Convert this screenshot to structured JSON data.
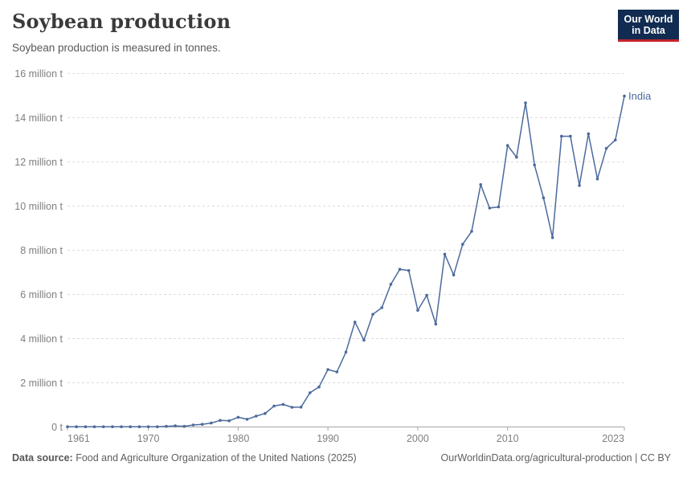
{
  "header": {
    "title": "Soybean production",
    "subtitle": "Soybean production is measured in tonnes.",
    "logo": {
      "line1": "Our World",
      "line2": "in Data"
    }
  },
  "footer": {
    "source_label": "Data source:",
    "source_text": " Food and Agriculture Organization of the United Nations (2025)",
    "license_text": "OurWorldinData.org/agricultural-production | CC BY"
  },
  "colors": {
    "line": "#4c6a9c",
    "series_label": "#4c6a9c",
    "grid": "#dcdcdc",
    "axis": "#a5a5a5",
    "tick_label": "#7f7f7f",
    "logo_bg": "#112b51",
    "logo_stripe": "#c5232b"
  },
  "chart_data": {
    "type": "line",
    "title": "Soybean production",
    "subtitle": "Soybean production is measured in tonnes.",
    "unit": "million tonnes",
    "xlim": [
      1961,
      2023
    ],
    "ylim": [
      0,
      16
    ],
    "grid": "horizontal-dashed",
    "legend_position": "end-of-line-label",
    "x_ticks": [
      {
        "value": 1961,
        "label": "1961"
      },
      {
        "value": 1970,
        "label": "1970"
      },
      {
        "value": 1980,
        "label": "1980"
      },
      {
        "value": 1990,
        "label": "1990"
      },
      {
        "value": 2000,
        "label": "2000"
      },
      {
        "value": 2010,
        "label": "2010"
      },
      {
        "value": 2023,
        "label": "2023"
      }
    ],
    "y_ticks": [
      {
        "value": 0,
        "label": "0 t"
      },
      {
        "value": 2,
        "label": "2 million t"
      },
      {
        "value": 4,
        "label": "4 million t"
      },
      {
        "value": 6,
        "label": "6 million t"
      },
      {
        "value": 8,
        "label": "8 million t"
      },
      {
        "value": 10,
        "label": "10 million t"
      },
      {
        "value": 12,
        "label": "12 million t"
      },
      {
        "value": 14,
        "label": "14 million t"
      },
      {
        "value": 16,
        "label": "16 million t"
      }
    ],
    "series": [
      {
        "name": "India",
        "x": [
          1961,
          1962,
          1963,
          1964,
          1965,
          1966,
          1967,
          1968,
          1969,
          1970,
          1971,
          1972,
          1973,
          1974,
          1975,
          1976,
          1977,
          1978,
          1979,
          1980,
          1981,
          1982,
          1983,
          1984,
          1985,
          1986,
          1987,
          1988,
          1989,
          1990,
          1991,
          1992,
          1993,
          1994,
          1995,
          1996,
          1997,
          1998,
          1999,
          2000,
          2001,
          2002,
          2003,
          2004,
          2005,
          2006,
          2007,
          2008,
          2009,
          2010,
          2011,
          2012,
          2013,
          2014,
          2015,
          2016,
          2017,
          2018,
          2019,
          2020,
          2021,
          2022,
          2023
        ],
        "y": [
          0.01,
          0.01,
          0.01,
          0.01,
          0.01,
          0.01,
          0.01,
          0.01,
          0.01,
          0.01,
          0.01,
          0.03,
          0.05,
          0.03,
          0.09,
          0.12,
          0.18,
          0.3,
          0.28,
          0.44,
          0.35,
          0.49,
          0.61,
          0.95,
          1.02,
          0.89,
          0.9,
          1.55,
          1.81,
          2.6,
          2.49,
          3.39,
          4.75,
          3.93,
          5.1,
          5.4,
          6.46,
          7.14,
          7.08,
          5.28,
          5.96,
          4.66,
          7.82,
          6.88,
          8.27,
          8.86,
          10.97,
          9.91,
          9.96,
          12.74,
          12.21,
          14.67,
          11.86,
          10.37,
          8.57,
          13.16,
          13.16,
          10.93,
          13.27,
          11.23,
          12.61,
          12.99,
          14.98
        ]
      }
    ]
  }
}
